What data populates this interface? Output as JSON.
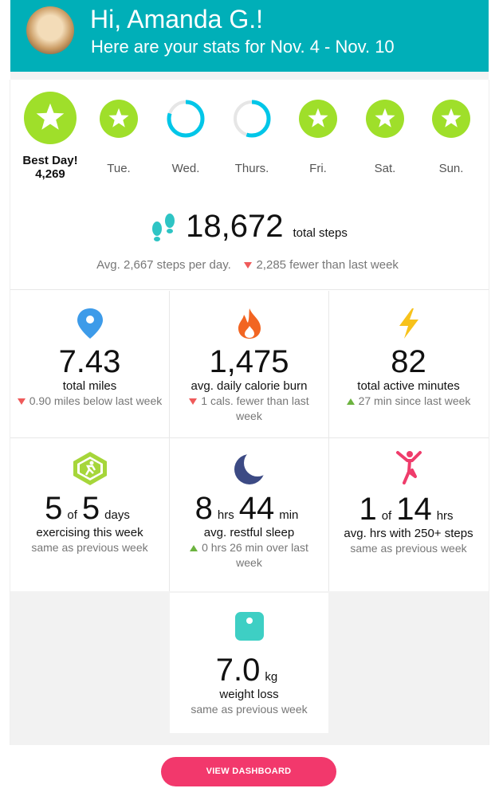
{
  "header": {
    "greeting": "Hi, Amanda G.!",
    "subtitle": "Here are your stats for Nov. 4 - Nov. 10"
  },
  "days": [
    {
      "label": "Best Day!",
      "value": "4,269",
      "status": "star"
    },
    {
      "label": "Tue.",
      "status": "star"
    },
    {
      "label": "Wed.",
      "status": "ring",
      "progress": 0.8
    },
    {
      "label": "Thurs.",
      "status": "ring",
      "progress": 0.55
    },
    {
      "label": "Fri.",
      "status": "star"
    },
    {
      "label": "Sat.",
      "status": "star"
    },
    {
      "label": "Sun.",
      "status": "star"
    }
  ],
  "steps": {
    "total": "18,672",
    "unit": "total steps",
    "average": "Avg. 2,667 steps per day.",
    "change": "2,285 fewer than last week"
  },
  "stats": [
    {
      "parts": [
        "7.43"
      ],
      "label": "total miles",
      "change": "0.90 miles below last week"
    },
    {
      "parts": [
        "1,475"
      ],
      "label": "avg. daily calorie burn",
      "change": "1 cals. fewer than last week"
    },
    {
      "parts": [
        "82"
      ],
      "label": "total active minutes",
      "change": "27 min since last week"
    },
    {
      "parts": [
        "5",
        "of",
        "5",
        "days"
      ],
      "label": "exercising this week",
      "change": "same as previous week"
    },
    {
      "parts": [
        "8",
        "hrs",
        "44",
        "min"
      ],
      "label": "avg. restful sleep",
      "change": "0 hrs 26 min over last week"
    },
    {
      "parts": [
        "1",
        "of",
        "14",
        "hrs"
      ],
      "label": "avg. hrs with 250+ steps",
      "change": "same as previous week"
    },
    {
      "parts": [
        "7.0",
        "kg"
      ],
      "label": "weight loss",
      "change": "same as previous week"
    }
  ],
  "button": "VIEW DASHBOARD"
}
